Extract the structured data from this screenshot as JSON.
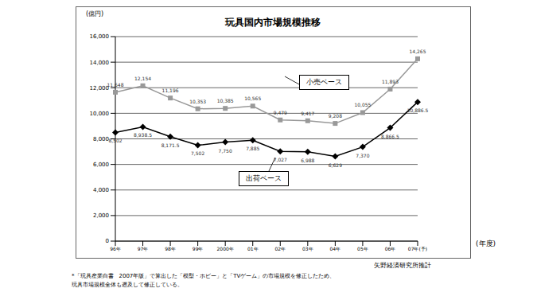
{
  "chart_data": {
    "type": "line",
    "title": "玩具国内市場規模推移",
    "y_unit": "(億円)",
    "x_label": "(年度)",
    "source": "矢野経済研究所推計",
    "notes": [
      "*「玩具産業白書　2007年版」で算出した「模型・ホビー」と「TVゲーム」の市場規模を修正したため、",
      "玩具市場規模全体も遡及して修正している。"
    ],
    "categories": [
      "96年",
      "97年",
      "98年",
      "99年",
      "2000年",
      "01年",
      "02年",
      "03年",
      "04年",
      "05年",
      "06年",
      "07年(予)"
    ],
    "series": [
      {
        "name": "小売ベース",
        "color": "#999999",
        "marker": "square",
        "values": [
          11648,
          12154,
          11196,
          10353,
          10385,
          10565,
          9479,
          9417,
          9208,
          10055,
          11893,
          14265
        ],
        "value_labels": [
          "11,648",
          "12,154",
          "11,196",
          "10,353",
          "10,385",
          "10,565",
          "9,479",
          "9,417",
          "9,208",
          "10,055",
          "11,893",
          "14,265"
        ]
      },
      {
        "name": "出荷ベース",
        "color": "#000000",
        "marker": "diamond",
        "values": [
          8502,
          8938.5,
          8171.5,
          7502,
          7750,
          7885,
          7027,
          6988,
          6629,
          7370,
          8866.5,
          10886.5
        ],
        "value_labels": [
          "8,502",
          "8,938.5",
          "8,171.5",
          "7,502",
          "7,750",
          "7,885",
          "7,027",
          "6,988",
          "6,629",
          "7,370",
          "8,866.5",
          "10,886.5"
        ]
      }
    ],
    "ylim": [
      0,
      16000
    ],
    "yticks": [
      0,
      {
        "value": 2000,
        "label": "2,000"
      },
      {
        "value": 4000,
        "label": "4,000"
      },
      {
        "value": 6000,
        "label": "6,000"
      },
      {
        "value": 8000,
        "label": "8,000"
      },
      {
        "value": 10000,
        "label": "10,000"
      },
      {
        "value": 12000,
        "label": "12,000"
      },
      {
        "value": 14000,
        "label": "14,000"
      },
      {
        "value": 16000,
        "label": "16,000"
      }
    ],
    "grid": true,
    "data_labels": true
  }
}
